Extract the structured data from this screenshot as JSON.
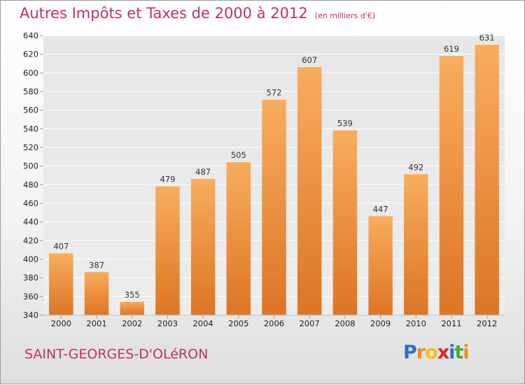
{
  "header": {
    "title": "Autres Impôts et Taxes de 2000 à 2012",
    "unit": "(en milliers d'€)"
  },
  "footer": {
    "town": "SAINT-GEORGES-D'OLéRON",
    "logo_letters": [
      "P",
      "r",
      "o",
      "x",
      "i",
      "t",
      "i"
    ],
    "logo_colors": [
      "#2a6fc9",
      "#f08a1c",
      "#f2c21a",
      "#d8262e",
      "#2a6fc9",
      "#4aa83a",
      "#f08a1c"
    ]
  },
  "colors": {
    "title": "#c0306a",
    "bar_light": "#f8ad5e",
    "bar_dark": "#dc7524",
    "plot_bg": "#ebebeb",
    "grid": "#ffffff"
  },
  "chart_data": {
    "type": "bar",
    "title": "Autres Impôts et Taxes de 2000 à 2012",
    "xlabel": "",
    "ylabel": "",
    "categories": [
      "2000",
      "2001",
      "2002",
      "2003",
      "2004",
      "2005",
      "2006",
      "2007",
      "2008",
      "2009",
      "2010",
      "2011",
      "2012"
    ],
    "values": [
      407,
      387,
      355,
      479,
      487,
      505,
      572,
      607,
      539,
      447,
      492,
      619,
      631
    ],
    "ylim": [
      340,
      640
    ],
    "yticks": [
      340,
      360,
      380,
      400,
      420,
      440,
      460,
      480,
      500,
      520,
      540,
      560,
      580,
      600,
      620,
      640
    ],
    "grid": true,
    "legend": "none"
  }
}
